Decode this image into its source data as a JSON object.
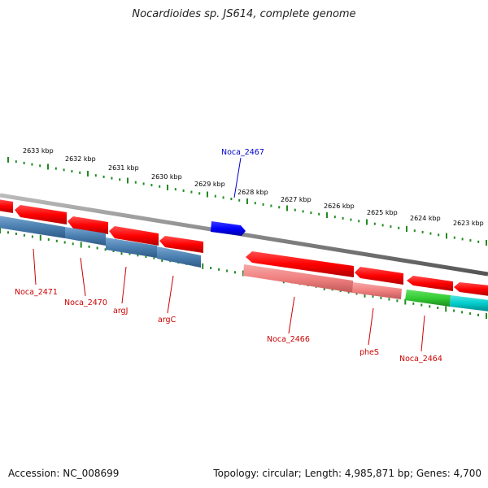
{
  "title": "Nocardioides sp. JS614, complete genome",
  "footer": {
    "accession": "Accession: NC_008699",
    "topology": "Topology: circular; Length: 4,985,871 bp; Genes: 4,700"
  },
  "colors": {
    "forward_cds": "#ff0000",
    "reverse_cds": "#ff0000",
    "forward_gene": "#0000ff",
    "reverse_gene_light": "#f08080",
    "reverse_gene_blue": "#4a7fb0",
    "reverse_gene_green": "#33cc33",
    "reverse_gene_cyan": "#00cccc",
    "backbone": "#888888",
    "ticks": "#228b22",
    "label_red": "#cc0000",
    "label_blue": "#0000cc"
  },
  "scale_labels": [
    "2633 kbp",
    "2632 kbp",
    "2631 kbp",
    "2630 kbp",
    "2629 kbp",
    "2628 kbp",
    "2627 kbp",
    "2626 kbp",
    "2625 kbp",
    "2624 kbp",
    "2623 kbp"
  ],
  "gene_labels": [
    {
      "text": "Noca_2467",
      "color": "blue"
    },
    {
      "text": "Noca_2471",
      "color": "red"
    },
    {
      "text": "Noca_2470",
      "color": "red"
    },
    {
      "text": "argJ",
      "color": "red"
    },
    {
      "text": "argC",
      "color": "red"
    },
    {
      "text": "Noca_2466",
      "color": "red"
    },
    {
      "text": "pheS",
      "color": "red"
    },
    {
      "text": "Noca_2464",
      "color": "red"
    }
  ]
}
